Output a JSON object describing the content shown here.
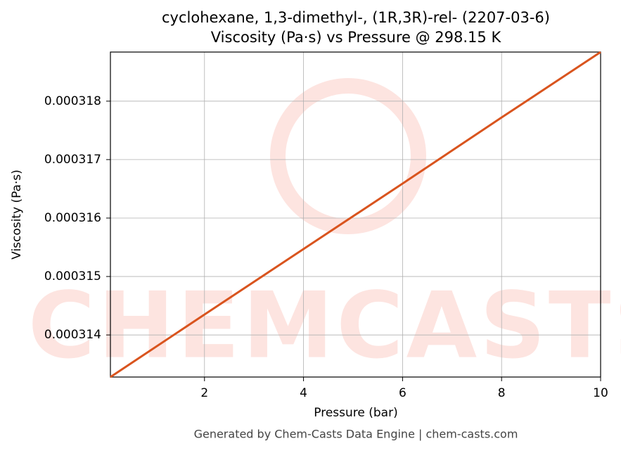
{
  "chart_data": {
    "type": "line",
    "title": "cyclohexane, 1,3-dimethyl-, (1R,3R)-rel- (2207-03-6)",
    "subtitle": "Viscosity (Pa·s) vs Pressure @ 298.15 K",
    "x_label": "Pressure (bar)",
    "y_label": "Viscosity (Pa·s)",
    "watermark": "CHEMCASTS",
    "footer": "Generated by Chem-Casts Data Engine | chem-casts.com",
    "x": [
      0.1,
      2,
      4,
      6,
      8,
      10
    ],
    "series": [
      {
        "name": "Viscosity",
        "color": "#d9541e",
        "values": [
          0.00031328,
          0.00031435,
          0.00031547,
          0.00031659,
          0.00031772,
          0.00031884
        ]
      }
    ],
    "xlim": [
      0.1,
      10
    ],
    "xticks": [
      2,
      4,
      6,
      8,
      10
    ],
    "ylim": [
      0.00031328,
      0.00031884
    ],
    "yticks": [
      0.000314,
      0.000315,
      0.000316,
      0.000317,
      0.000318
    ],
    "grid": true
  }
}
